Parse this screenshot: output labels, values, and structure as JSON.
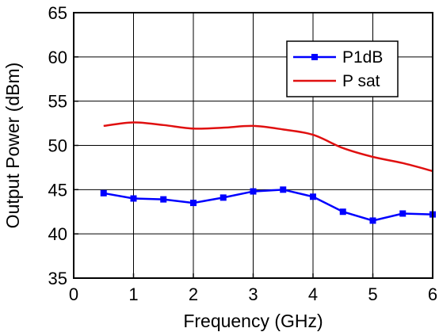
{
  "chart_data": {
    "type": "line",
    "xlabel": "Frequency  (GHz)",
    "ylabel": "Output Power  (dBm)",
    "xlim": [
      0,
      6
    ],
    "ylim": [
      35,
      65
    ],
    "xticks": [
      0,
      1,
      2,
      3,
      4,
      5,
      6
    ],
    "yticks": [
      35,
      40,
      45,
      50,
      55,
      60,
      65
    ],
    "grid": true,
    "legend_position": "top-right",
    "series": [
      {
        "name": "P1dB",
        "color": "#0000ff",
        "marker": "square",
        "x": [
          0.5,
          1.0,
          1.5,
          2.0,
          2.5,
          3.0,
          3.5,
          4.0,
          4.5,
          5.0,
          5.5,
          6.0
        ],
        "y": [
          44.6,
          44.0,
          43.9,
          43.5,
          44.1,
          44.8,
          45.0,
          44.2,
          42.5,
          41.5,
          42.3,
          42.2
        ]
      },
      {
        "name": "P sat",
        "color": "#e01010",
        "marker": "none",
        "x": [
          0.5,
          1.0,
          1.5,
          2.0,
          2.5,
          3.0,
          3.5,
          4.0,
          4.5,
          5.0,
          5.5,
          6.0
        ],
        "y": [
          52.2,
          52.6,
          52.3,
          51.9,
          52.0,
          52.2,
          51.8,
          51.2,
          49.7,
          48.7,
          48.0,
          47.1
        ]
      }
    ]
  }
}
